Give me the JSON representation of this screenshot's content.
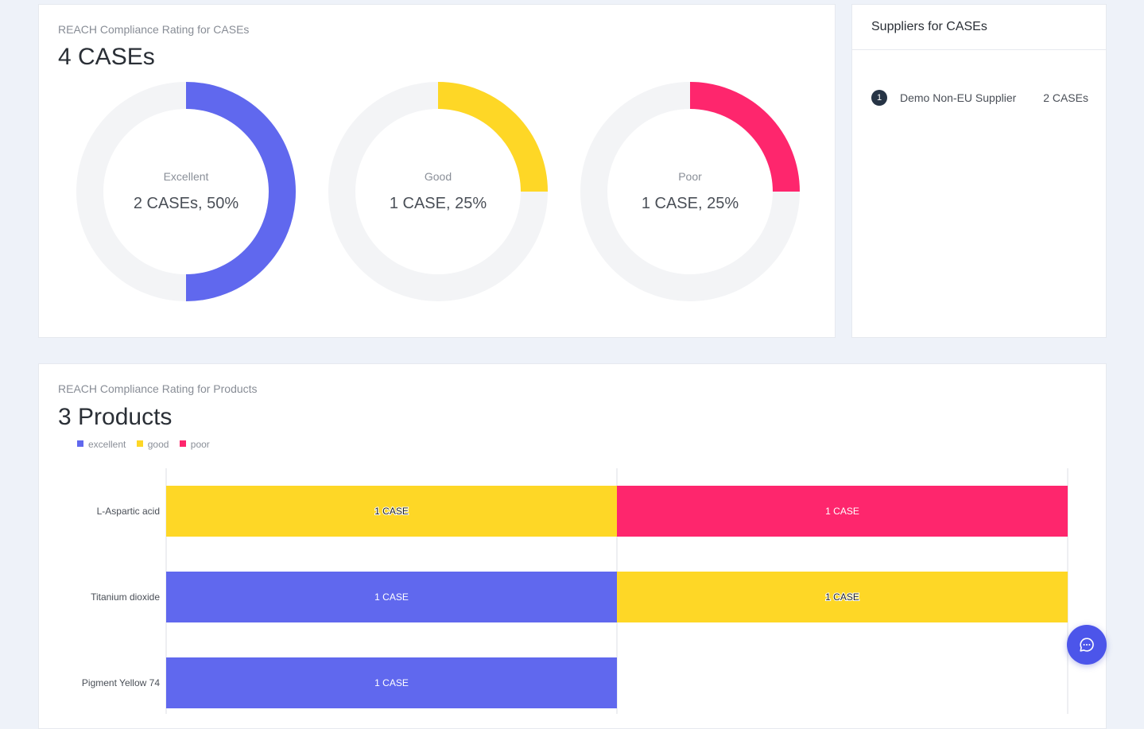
{
  "cases_panel": {
    "subtitle": "REACH Compliance Rating for CASEs",
    "title": "4 CASEs",
    "donuts": [
      {
        "label": "Excellent",
        "value_text": "2 CASEs, 50%",
        "fraction": 0.5,
        "color": "#6068ee"
      },
      {
        "label": "Good",
        "value_text": "1 CASE, 25%",
        "fraction": 0.25,
        "color": "#fed726"
      },
      {
        "label": "Poor",
        "value_text": "1 CASE, 25%",
        "fraction": 0.25,
        "color": "#fe266d"
      }
    ],
    "track_color": "#f3f4f6"
  },
  "suppliers_panel": {
    "title": "Suppliers for CASEs",
    "items": [
      {
        "rank": "1",
        "name": "Demo Non-EU Supplier",
        "count": "2 CASEs"
      }
    ]
  },
  "products_panel": {
    "subtitle": "REACH Compliance Rating for Products",
    "title": "3 Products",
    "legend": [
      {
        "label": "excellent",
        "color": "#6068ee"
      },
      {
        "label": "good",
        "color": "#fed726"
      },
      {
        "label": "poor",
        "color": "#fe266d"
      }
    ]
  },
  "chart_data": {
    "type": "bar",
    "orientation": "horizontal",
    "stacked": true,
    "categories": [
      "L-Aspartic acid",
      "Titanium dioxide",
      "Pigment Yellow 74"
    ],
    "series": [
      {
        "name": "excellent",
        "color": "#6068ee",
        "values": [
          0,
          1,
          1
        ]
      },
      {
        "name": "good",
        "color": "#fed726",
        "values": [
          1,
          1,
          0
        ]
      },
      {
        "name": "poor",
        "color": "#fe266d",
        "values": [
          1,
          0,
          0
        ]
      }
    ],
    "data_label": "1 CASE",
    "xlim": [
      0,
      2
    ],
    "legend_position": "top-left",
    "grid": true
  },
  "chat_button": {
    "icon": "chat-bubble-icon"
  }
}
